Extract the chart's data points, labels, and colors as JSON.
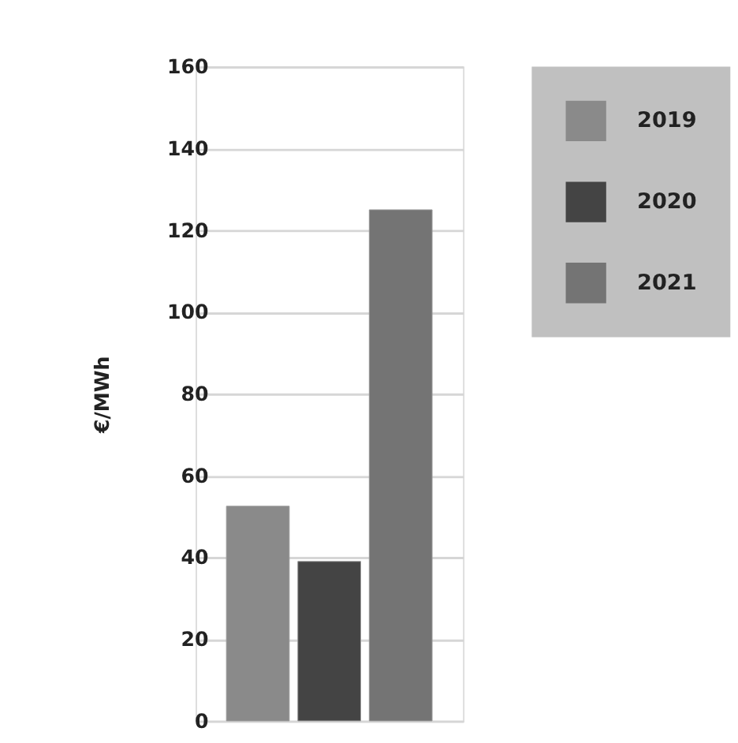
{
  "chart_data": {
    "type": "bar",
    "ylabel": "€/MWh",
    "categories": [
      null
    ],
    "series": [
      {
        "name": "2019",
        "color": "#8a8a8a",
        "values": [
          52.5
        ]
      },
      {
        "name": "2020",
        "color": "#444444",
        "values": [
          39
        ]
      },
      {
        "name": "2021",
        "color": "#747474",
        "values": [
          125
        ]
      }
    ],
    "ylim": [
      0,
      160
    ],
    "yticks": [
      0,
      20,
      40,
      60,
      80,
      100,
      120,
      140,
      160
    ],
    "grid": "y",
    "legend": "top right"
  }
}
